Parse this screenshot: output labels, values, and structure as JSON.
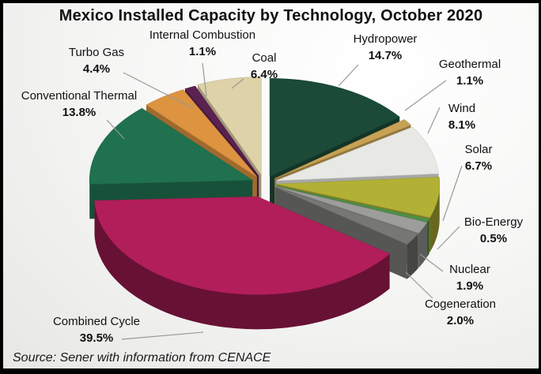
{
  "chart_data": {
    "type": "pie",
    "title": "Mexico Installed Capacity by Technology, October 2020",
    "unit": "%",
    "style": "3d-exploded",
    "direction": "clockwise",
    "start_angle_deg": 0,
    "source": "Source: Sener with information from CENACE",
    "leader_line_color": "#999996",
    "slices": [
      {
        "label": "Hydropower",
        "value": 14.7,
        "color": "#1b4a38"
      },
      {
        "label": "Geothermal",
        "value": 1.1,
        "color": "#c8a254"
      },
      {
        "label": "Wind",
        "value": 8.1,
        "color": "#e8e8e5"
      },
      {
        "label": "Solar",
        "value": 6.7,
        "color": "#b2b135"
      },
      {
        "label": "Bio-Energy",
        "value": 0.5,
        "color": "#4e9147"
      },
      {
        "label": "Nuclear",
        "value": 1.9,
        "color": "#9d9d9b"
      },
      {
        "label": "Cogeneration",
        "value": 2.0,
        "color": "#777775"
      },
      {
        "label": "Combined Cycle",
        "value": 39.5,
        "color": "#b21e59"
      },
      {
        "label": "Conventional Thermal",
        "value": 13.8,
        "color": "#20714f"
      },
      {
        "label": "Turbo Gas",
        "value": 4.4,
        "color": "#dd9340"
      },
      {
        "label": "Internal Combustion",
        "value": 1.1,
        "color": "#5b2150"
      },
      {
        "label": "Coal",
        "value": 6.4,
        "color": "#ded2a8"
      }
    ]
  }
}
